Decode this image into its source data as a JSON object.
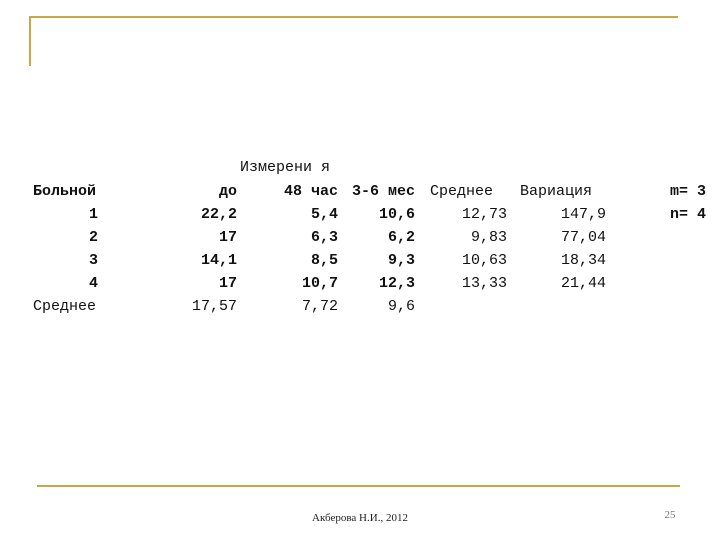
{
  "table": {
    "caption": "Измерени я",
    "header": [
      "Больной",
      "до",
      "48 час",
      "3-6 мес",
      "Среднее",
      "Вариация",
      "m= 3"
    ],
    "rows": [
      [
        "1",
        "22,2",
        "5,4",
        "10,6",
        "12,73",
        "147,9",
        "n= 4"
      ],
      [
        "2",
        "17",
        "6,3",
        "6,2",
        "9,83",
        "77,04"
      ],
      [
        "3",
        "14,1",
        "8,5",
        "9,3",
        "10,63",
        "18,34"
      ],
      [
        "4",
        "17",
        "10,7",
        "12,3",
        "13,33",
        "21,44"
      ],
      [
        "Среднее",
        "17,57",
        "7,72",
        "9,6"
      ]
    ]
  },
  "footer": {
    "author": "Акберова Н.И., 2012",
    "page": "25"
  }
}
